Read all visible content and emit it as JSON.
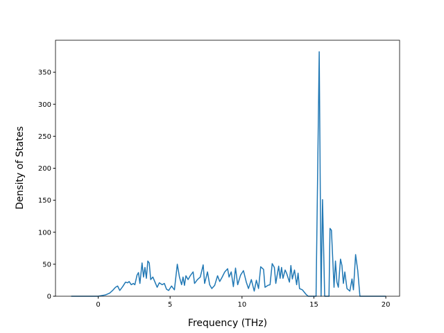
{
  "chart_data": {
    "type": "line",
    "x_label": "Frequency (THz)",
    "y_label": "Density of States",
    "x": [
      -1.88,
      0,
      0.5,
      0.8,
      1.0,
      1.2,
      1.35,
      1.5,
      1.7,
      1.9,
      2.05,
      2.15,
      2.3,
      2.45,
      2.55,
      2.7,
      2.8,
      2.9,
      3.05,
      3.15,
      3.25,
      3.35,
      3.45,
      3.55,
      3.65,
      3.8,
      3.95,
      4.1,
      4.25,
      4.45,
      4.6,
      4.75,
      4.9,
      5.1,
      5.3,
      5.5,
      5.65,
      5.8,
      5.9,
      6.0,
      6.1,
      6.25,
      6.4,
      6.6,
      6.7,
      6.9,
      7.1,
      7.3,
      7.4,
      7.6,
      7.75,
      7.9,
      8.1,
      8.3,
      8.45,
      8.6,
      8.8,
      9.0,
      9.1,
      9.25,
      9.4,
      9.55,
      9.7,
      9.9,
      10.1,
      10.3,
      10.45,
      10.65,
      10.85,
      11.0,
      11.15,
      11.3,
      11.5,
      11.6,
      11.8,
      11.95,
      12.1,
      12.25,
      12.35,
      12.55,
      12.65,
      12.75,
      12.85,
      13.0,
      13.1,
      13.3,
      13.4,
      13.5,
      13.65,
      13.8,
      13.9,
      14.0,
      14.2,
      14.45,
      14.6,
      15.15,
      15.37,
      15.5,
      15.6,
      15.75,
      16.05,
      16.12,
      16.22,
      16.4,
      16.5,
      16.6,
      16.7,
      16.85,
      16.95,
      17.05,
      17.15,
      17.3,
      17.5,
      17.65,
      17.75,
      17.9,
      18.05,
      18.2,
      20
    ],
    "series": [
      {
        "color": "#1f77b4",
        "values": [
          0,
          0,
          2,
          5,
          9,
          14,
          16,
          9,
          15,
          22,
          21,
          23,
          18,
          20,
          18,
          33,
          37,
          20,
          52,
          30,
          45,
          28,
          55,
          52,
          26,
          30,
          22,
          14,
          21,
          18,
          20,
          11,
          9,
          16,
          10,
          50,
          30,
          18,
          30,
          17,
          32,
          26,
          32,
          38,
          20,
          26,
          30,
          49,
          20,
          38,
          18,
          12,
          17,
          32,
          23,
          29,
          38,
          43,
          30,
          38,
          15,
          44,
          18,
          33,
          40,
          22,
          12,
          26,
          8,
          25,
          12,
          46,
          42,
          14,
          17,
          18,
          51,
          45,
          20,
          47,
          28,
          45,
          28,
          41,
          36,
          22,
          48,
          27,
          41,
          18,
          36,
          12,
          10,
          3,
          0,
          0,
          382,
          0,
          151,
          0,
          0,
          106,
          103,
          14,
          55,
          22,
          14,
          58,
          48,
          20,
          38,
          12,
          8,
          27,
          10,
          65,
          40,
          0,
          0
        ]
      }
    ],
    "xlim": [
      -2.97,
      20.96
    ],
    "ylim": [
      0,
      400
    ],
    "xticks": [
      0,
      5,
      10,
      15,
      20
    ],
    "yticks": [
      0,
      50,
      100,
      150,
      200,
      250,
      300,
      350
    ]
  }
}
